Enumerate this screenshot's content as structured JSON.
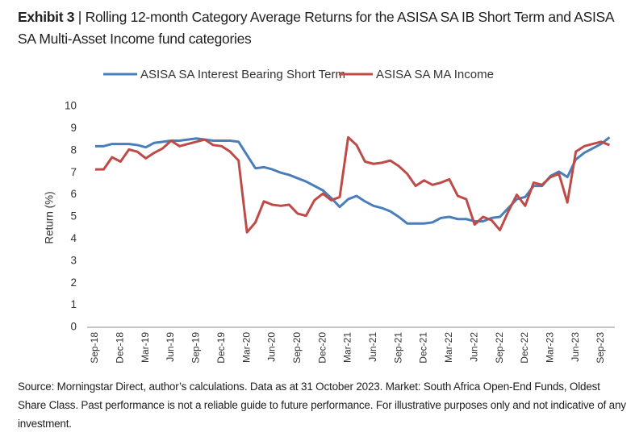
{
  "chart_data": {
    "type": "line",
    "exhibit": "Exhibit 3",
    "title": "| Rolling 12-month Category Average Returns for the ASISA SA IB Short Term and ASISA SA Multi-Asset Income fund categories",
    "y_label": "Return (%)",
    "source": "Source: Morningstar Direct, author’s calculations. Data as at 31 October 2023. Market: South Africa Open-End Funds, Oldest Share Class. Past performance is not a reliable guide to future performance. For illustrative purposes only and not indicative of any investment.",
    "categories": [
      "Sep-18",
      null,
      null,
      "Dec-18",
      null,
      null,
      "Mar-19",
      null,
      null,
      "Jun-19",
      null,
      null,
      "Sep-19",
      null,
      null,
      "Dec-19",
      null,
      null,
      "Mar-20",
      null,
      null,
      "Jun-20",
      null,
      null,
      "Sep-20",
      null,
      null,
      "Dec-20",
      null,
      null,
      "Mar-21",
      null,
      null,
      "Jun-21",
      null,
      null,
      "Sep-21",
      null,
      null,
      "Dec-21",
      null,
      null,
      "Mar-22",
      null,
      null,
      "Jun-22",
      null,
      null,
      "Sep-22",
      null,
      null,
      "Dec-22",
      null,
      null,
      "Mar-23",
      null,
      null,
      "Jun-23",
      null,
      null,
      "Sep-23",
      null
    ],
    "series": [
      {
        "name": "ASISA SA Interest Bearing Short Term",
        "color": "#4a7ebb",
        "values": [
          8.2,
          8.2,
          8.3,
          8.3,
          8.3,
          8.25,
          8.15,
          8.35,
          8.4,
          8.45,
          8.45,
          8.5,
          8.55,
          8.5,
          8.45,
          8.45,
          8.45,
          8.4,
          7.8,
          7.2,
          7.25,
          7.15,
          7.0,
          6.9,
          6.75,
          6.6,
          6.4,
          6.2,
          5.85,
          5.45,
          5.8,
          5.95,
          5.7,
          5.5,
          5.4,
          5.25,
          5.0,
          4.7,
          4.7,
          4.7,
          4.75,
          4.95,
          5.0,
          4.9,
          4.9,
          4.8,
          4.8,
          4.95,
          5.0,
          5.4,
          5.8,
          5.9,
          6.4,
          6.4,
          6.85,
          7.05,
          6.8,
          7.6,
          7.9,
          8.1,
          8.3,
          8.6
        ]
      },
      {
        "name": "ASISA SA MA Income",
        "color": "#be4b48",
        "values": [
          7.15,
          7.15,
          7.7,
          7.5,
          8.05,
          7.95,
          7.65,
          7.9,
          8.1,
          8.45,
          8.2,
          8.3,
          8.4,
          8.5,
          8.25,
          8.2,
          7.95,
          7.55,
          4.3,
          4.75,
          5.7,
          5.55,
          5.5,
          5.55,
          5.15,
          5.05,
          5.75,
          6.05,
          5.75,
          5.9,
          8.6,
          8.25,
          7.5,
          7.4,
          7.45,
          7.55,
          7.3,
          6.95,
          6.4,
          6.65,
          6.45,
          6.55,
          6.7,
          5.95,
          5.8,
          4.65,
          5.0,
          4.85,
          4.4,
          5.25,
          6.0,
          5.5,
          6.55,
          6.45,
          6.8,
          6.95,
          5.65,
          7.95,
          8.2,
          8.3,
          8.4,
          8.25
        ]
      }
    ],
    "ylim": [
      0,
      10
    ],
    "yticks": [
      0,
      1,
      2,
      3,
      4,
      5,
      6,
      7,
      8,
      9,
      10
    ],
    "grid": false,
    "legend": "top"
  }
}
